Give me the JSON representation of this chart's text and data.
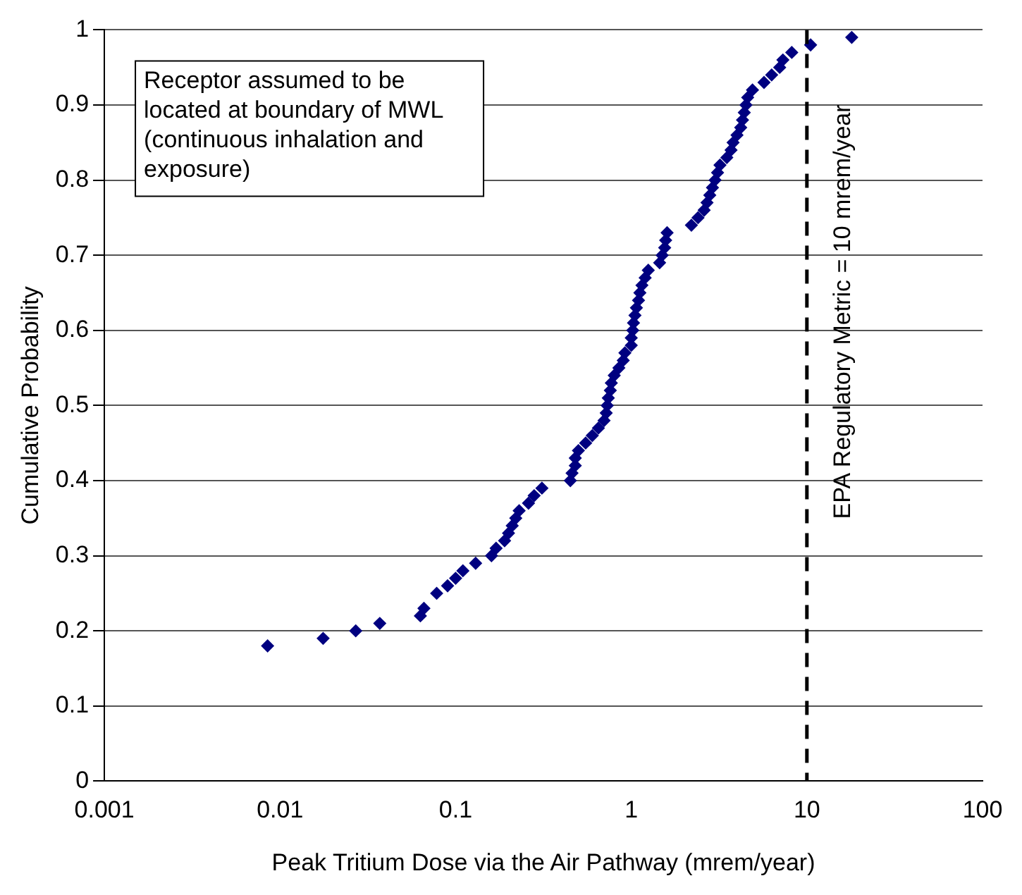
{
  "chart_data": {
    "type": "scatter",
    "xlabel": "Peak Tritium Dose via the Air Pathway (mrem/year)",
    "ylabel": "Cumulative Probability",
    "x": [
      0.0085,
      0.0176,
      0.027,
      0.037,
      0.063,
      0.066,
      0.078,
      0.09,
      0.1,
      0.11,
      0.13,
      0.16,
      0.17,
      0.19,
      0.2,
      0.21,
      0.22,
      0.23,
      0.26,
      0.28,
      0.31,
      0.45,
      0.46,
      0.48,
      0.48,
      0.5,
      0.55,
      0.6,
      0.65,
      0.7,
      0.72,
      0.73,
      0.74,
      0.76,
      0.77,
      0.8,
      0.85,
      0.9,
      0.92,
      1.0,
      1.0,
      1.02,
      1.03,
      1.05,
      1.07,
      1.1,
      1.12,
      1.15,
      1.2,
      1.25,
      1.45,
      1.5,
      1.55,
      1.57,
      1.6,
      2.2,
      2.4,
      2.6,
      2.7,
      2.8,
      2.9,
      3.0,
      3.1,
      3.2,
      3.5,
      3.7,
      3.8,
      4.0,
      4.2,
      4.3,
      4.4,
      4.5,
      4.6,
      4.9,
      5.7,
      6.3,
      7.0,
      7.3,
      8.2,
      10.5,
      18
    ],
    "series": [
      {
        "color": "#000080",
        "values": [
          0.18,
          0.19,
          0.2,
          0.21,
          0.22,
          0.23,
          0.25,
          0.26,
          0.27,
          0.28,
          0.29,
          0.3,
          0.31,
          0.32,
          0.33,
          0.34,
          0.35,
          0.36,
          0.37,
          0.38,
          0.39,
          0.4,
          0.41,
          0.42,
          0.43,
          0.44,
          0.45,
          0.46,
          0.47,
          0.48,
          0.49,
          0.5,
          0.51,
          0.52,
          0.53,
          0.54,
          0.55,
          0.56,
          0.57,
          0.58,
          0.59,
          0.6,
          0.61,
          0.62,
          0.63,
          0.64,
          0.65,
          0.66,
          0.67,
          0.68,
          0.69,
          0.7,
          0.71,
          0.72,
          0.73,
          0.74,
          0.75,
          0.76,
          0.77,
          0.78,
          0.79,
          0.8,
          0.81,
          0.82,
          0.83,
          0.84,
          0.85,
          0.86,
          0.87,
          0.88,
          0.89,
          0.9,
          0.91,
          0.92,
          0.93,
          0.94,
          0.95,
          0.96,
          0.97,
          0.98,
          0.99
        ]
      }
    ],
    "log": "x",
    "xlim": [
      0.001,
      100
    ],
    "xticks": [
      0.001,
      0.01,
      0.1,
      1,
      10,
      100
    ],
    "ylim": [
      0,
      1
    ],
    "yticks": [
      0,
      0.1,
      0.2,
      0.3,
      0.4,
      0.5,
      0.6,
      0.7,
      0.8,
      0.9,
      1
    ],
    "grid": "y",
    "legend": false,
    "marker": "diamond",
    "ref_lines": [
      {
        "axis": "x",
        "value": 10,
        "label": "EPA Regulatory Metric = 10 mrem/year",
        "color": "#000000",
        "line_style": "dashed"
      }
    ],
    "annotations": [
      "Receptor assumed to be located at boundary of MWL (continuous inhalation and exposure)"
    ]
  }
}
